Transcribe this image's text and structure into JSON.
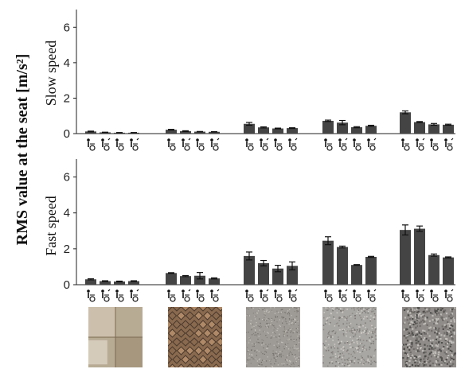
{
  "figure": {
    "ylabel": "RMS value at the seat [m/s²]"
  },
  "chart_data": [
    {
      "type": "bar",
      "panel_label": "Slow speed",
      "ylim": [
        0,
        7
      ],
      "yticks": [
        "0",
        "2",
        "4",
        "6"
      ],
      "groups": 5,
      "bars_per_group": 4,
      "bar_icons": [
        "attendant-propelled-wheelchair-icon",
        "self-propelled-wheelchair-icon",
        "attendant-propelled-wheelchair-icon",
        "self-propelled-wheelchair-icon"
      ],
      "series": [
        {
          "name": "",
          "values": [
            0.12,
            0.22,
            0.55,
            0.72,
            1.2
          ],
          "errors": [
            0.02,
            0.02,
            0.08,
            0.04,
            0.08
          ]
        },
        {
          "name": "",
          "values": [
            0.07,
            0.14,
            0.35,
            0.62,
            0.65
          ],
          "errors": [
            0.01,
            0.02,
            0.03,
            0.12,
            0.03
          ]
        },
        {
          "name": "",
          "values": [
            0.05,
            0.11,
            0.29,
            0.36,
            0.52
          ],
          "errors": [
            0.01,
            0.01,
            0.02,
            0.03,
            0.05
          ]
        },
        {
          "name": "",
          "values": [
            0.05,
            0.1,
            0.31,
            0.44,
            0.5
          ],
          "errors": [
            0.01,
            0.01,
            0.02,
            0.03,
            0.03
          ]
        }
      ],
      "bar_color": "#444444",
      "grid": false
    },
    {
      "type": "bar",
      "panel_label": "Fast speed",
      "ylim": [
        0,
        7
      ],
      "yticks": [
        "0",
        "2",
        "4",
        "6"
      ],
      "groups": 5,
      "bars_per_group": 4,
      "bar_icons": [
        "attendant-propelled-wheelchair-icon",
        "self-propelled-wheelchair-icon",
        "attendant-propelled-wheelchair-icon",
        "self-propelled-wheelchair-icon"
      ],
      "series": [
        {
          "name": "",
          "values": [
            0.3,
            0.65,
            1.6,
            2.45,
            3.05
          ],
          "errors": [
            0.03,
            0.02,
            0.22,
            0.22,
            0.28
          ]
        },
        {
          "name": "",
          "values": [
            0.2,
            0.48,
            1.2,
            2.1,
            3.12
          ],
          "errors": [
            0.02,
            0.03,
            0.15,
            0.05,
            0.15
          ]
        },
        {
          "name": "",
          "values": [
            0.18,
            0.5,
            0.9,
            1.1,
            1.65
          ],
          "errors": [
            0.02,
            0.18,
            0.18,
            0.02,
            0.06
          ]
        },
        {
          "name": "",
          "values": [
            0.2,
            0.35,
            1.05,
            1.55,
            1.52
          ],
          "errors": [
            0.02,
            0.03,
            0.22,
            0.03,
            0.03
          ]
        }
      ],
      "bar_color": "#444444",
      "grid": false
    }
  ],
  "surfaces": [
    {
      "name": "polished-stone-floor",
      "colors": [
        "#b8ab94",
        "#7a6850",
        "#d8cfbd",
        "#9b8a70"
      ]
    },
    {
      "name": "brick-paving",
      "colors": [
        "#8a6a4f",
        "#4a3a2e",
        "#b08a68",
        "#6d5a4a"
      ]
    },
    {
      "name": "fine-asphalt",
      "colors": [
        "#9e9a95",
        "#6e6a66",
        "#c9c5bf",
        "#85817c"
      ]
    },
    {
      "name": "coarse-asphalt",
      "colors": [
        "#a9a7a3",
        "#7c7976",
        "#cfccc7",
        "#8f8c88"
      ]
    },
    {
      "name": "rough-asphalt",
      "colors": [
        "#8f8c89",
        "#4f4d4b",
        "#c1beba",
        "#6f6c69"
      ]
    }
  ]
}
